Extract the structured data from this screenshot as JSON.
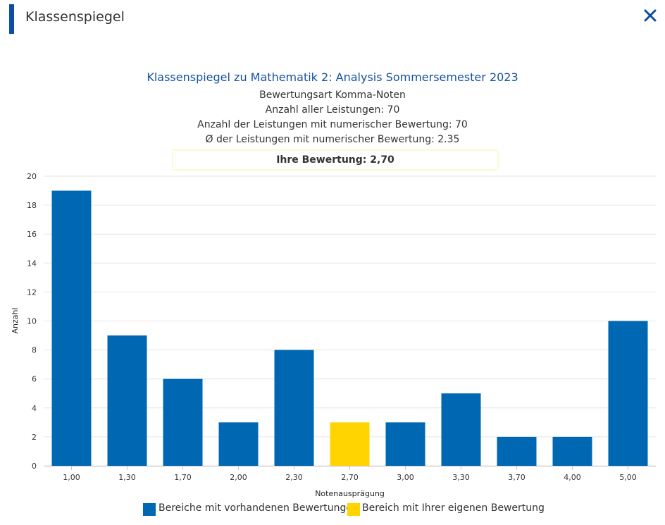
{
  "dialog": {
    "title": "Klassenspiegel",
    "close_icon": "close-x-icon"
  },
  "colors": {
    "accent": "#0a4fa3",
    "bar_default": "#0067b3",
    "bar_own": "#ffd400",
    "title": "#1653a0"
  },
  "header": {
    "title": "Klassenspiegel zu Mathematik 2: Analysis Sommersemester 2023",
    "lines": [
      "Bewertungsart Komma-Noten",
      "Anzahl aller Leistungen: 70",
      "Anzahl der Leistungen mit numerischer Bewertung: 70",
      "Ø der Leistungen mit numerischer Bewertung: 2.35"
    ],
    "own_grade": "Ihre Bewertung: 2,70"
  },
  "chart_data": {
    "type": "bar",
    "categories": [
      "1,00",
      "1,30",
      "1,70",
      "2,00",
      "2,30",
      "2,70",
      "3,00",
      "3,30",
      "3,70",
      "4,00",
      "5,00"
    ],
    "values": [
      19,
      9,
      6,
      3,
      8,
      3,
      3,
      5,
      2,
      2,
      10
    ],
    "highlight_index": 5,
    "xlabel": "Notenausprägung",
    "ylabel": "Anzahl",
    "ylim": [
      0,
      20
    ],
    "yticks": [
      0,
      2,
      4,
      6,
      8,
      10,
      12,
      14,
      16,
      18,
      20
    ],
    "grid": true,
    "legend_position": "bottom",
    "legend": [
      {
        "label": "Bereiche mit vorhandenen Bewertungen",
        "color": "#0067b3"
      },
      {
        "label": "Bereich mit Ihrer eigenen Bewertung",
        "color": "#ffd400"
      }
    ]
  }
}
